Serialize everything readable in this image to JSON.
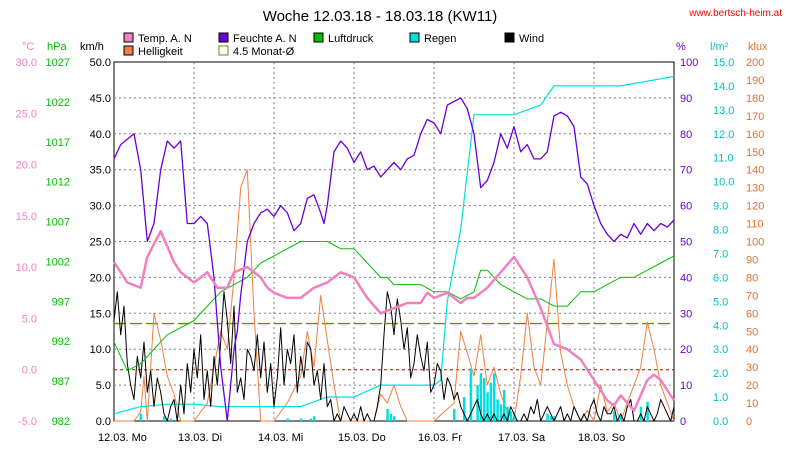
{
  "chart_data": {
    "type": "line",
    "title": "Woche 12.03.18 - 18.03.18 (KW11)",
    "source": "www.bertsch-heim.at",
    "x_labels": [
      "12.03.  Mo",
      "13.03.  Di",
      "14.03.  Mi",
      "15.03.  Do",
      "16.03.  Fr",
      "17.03.  Sa",
      "18.03.  So"
    ],
    "x_range_hours": [
      0,
      168
    ],
    "legend": [
      {
        "label": "Temp. A. N",
        "color": "#f080c0"
      },
      {
        "label": "Feuchte A. N",
        "color": "#6a00d8"
      },
      {
        "label": "Luftdruck",
        "color": "#00c000"
      },
      {
        "label": "Regen",
        "color": "#00e0e0"
      },
      {
        "label": "Wind",
        "color": "#000000"
      },
      {
        "label": "Helligkeit",
        "color": "#f08040"
      },
      {
        "label": "4.5 Monat-Ø",
        "color": "#808000"
      }
    ],
    "axes": {
      "temp": {
        "unit": "°C",
        "color": "#f080c0",
        "ticks": [
          "30.0",
          "25.0",
          "20.0",
          "15.0",
          "10.0",
          "5.0",
          "0.0",
          "-5.0"
        ],
        "min": -5,
        "max": 30
      },
      "press": {
        "unit": "hPa",
        "color": "#00c000",
        "ticks": [
          "1027",
          "1022",
          "1017",
          "1012",
          "1007",
          "1002",
          "997",
          "992",
          "987",
          "982"
        ],
        "min": 982,
        "max": 1032
      },
      "wind": {
        "unit": "km/h",
        "color": "#000000",
        "ticks": [
          "50.0",
          "45.0",
          "40.0",
          "35.0",
          "30.0",
          "25.0",
          "20.0",
          "15.0",
          "10.0",
          "5.0",
          "0.0"
        ],
        "min": 0,
        "max": 50
      },
      "hum": {
        "unit": "%",
        "color": "#6a00d8",
        "ticks": [
          "100",
          "90",
          "80",
          "70",
          "60",
          "50",
          "40",
          "30",
          "20",
          "10",
          "0"
        ],
        "min": 0,
        "max": 100
      },
      "rain": {
        "unit": "l/m²",
        "color": "#00c0c0",
        "ticks": [
          "15.0",
          "14.0",
          "13.0",
          "12.0",
          "11.0",
          "10.0",
          "9.0",
          "8.0",
          "7.0",
          "6.0",
          "5.0",
          "4.0",
          "3.0",
          "2.0",
          "1.0",
          "0.0"
        ],
        "min": 0,
        "max": 15
      },
      "lux": {
        "unit": "klux",
        "color": "#e07030",
        "ticks": [
          "200",
          "190",
          "180",
          "170",
          "160",
          "150",
          "140",
          "130",
          "120",
          "110",
          "100",
          "90",
          "80",
          "70",
          "60",
          "50",
          "40",
          "30",
          "20",
          "10",
          "0"
        ],
        "min": 0,
        "max": 200
      }
    },
    "reference_lines": {
      "temp_zero_c": 0,
      "avg_temp_c": 4.5
    },
    "series": {
      "temp": {
        "x": [
          0,
          4,
          8,
          10,
          14,
          18,
          20,
          24,
          28,
          31,
          34,
          36,
          40,
          44,
          46,
          48,
          52,
          56,
          60,
          64,
          68,
          72,
          76,
          80,
          84,
          88,
          92,
          94,
          96,
          100,
          104,
          106,
          108,
          112,
          116,
          120,
          124,
          128,
          132,
          136,
          140,
          144,
          148,
          150,
          152,
          156,
          160,
          162,
          164,
          168
        ],
        "y": [
          10.5,
          8.5,
          8.0,
          11.0,
          13.5,
          10.5,
          9.5,
          8.5,
          9.5,
          8.0,
          8.0,
          9.5,
          10.0,
          9.0,
          8.0,
          7.5,
          7.0,
          7.0,
          8.0,
          8.5,
          9.5,
          9.0,
          7.0,
          5.5,
          6.0,
          6.5,
          6.5,
          7.5,
          7.0,
          7.5,
          6.5,
          7.0,
          7.0,
          8.0,
          9.5,
          11.0,
          9.0,
          6.0,
          2.5,
          2.0,
          1.0,
          -1.0,
          -3.0,
          -3.5,
          -2.5,
          -4.0,
          -1.0,
          -0.5,
          -1.0,
          -3.0
        ]
      },
      "humidity": {
        "x": [
          0,
          2,
          6,
          8,
          10,
          12,
          14,
          16,
          18,
          20,
          22,
          24,
          26,
          28,
          30,
          32,
          34,
          36,
          37,
          38,
          40,
          42,
          44,
          46,
          48,
          50,
          52,
          54,
          56,
          58,
          60,
          62,
          63,
          64,
          66,
          68,
          70,
          72,
          74,
          76,
          78,
          80,
          82,
          84,
          86,
          88,
          90,
          92,
          94,
          96,
          98,
          100,
          102,
          104,
          106,
          108,
          110,
          112,
          114,
          116,
          118,
          120,
          122,
          124,
          126,
          128,
          130,
          132,
          134,
          136,
          138,
          140,
          142,
          144,
          146,
          148,
          150,
          152,
          154,
          156,
          158,
          160,
          162,
          164,
          166,
          168
        ],
        "y": [
          73,
          77,
          80,
          70,
          50,
          55,
          70,
          78,
          76,
          78,
          55,
          55,
          57,
          55,
          40,
          15,
          0,
          20,
          25,
          35,
          50,
          55,
          58,
          59,
          57,
          60,
          58,
          53,
          55,
          62,
          63,
          58,
          55,
          60,
          75,
          78,
          76,
          72,
          75,
          70,
          71,
          68,
          70,
          72,
          70,
          73,
          74,
          80,
          84,
          83,
          80,
          88,
          89,
          90,
          87,
          80,
          65,
          67,
          72,
          80,
          76,
          82,
          75,
          77,
          73,
          73,
          75,
          85,
          86,
          85,
          82,
          68,
          66,
          60,
          55,
          52,
          50,
          52,
          51,
          55,
          52,
          55,
          53,
          55,
          54,
          56
        ]
      },
      "pressure": {
        "x": [
          0,
          4,
          8,
          12,
          16,
          20,
          24,
          28,
          32,
          36,
          40,
          44,
          48,
          52,
          56,
          60,
          64,
          68,
          72,
          76,
          80,
          82,
          84,
          88,
          92,
          96,
          100,
          104,
          108,
          110,
          112,
          114,
          116,
          120,
          124,
          128,
          132,
          136,
          140,
          144,
          148,
          152,
          156,
          160,
          164,
          168
        ],
        "y": [
          993,
          989,
          990,
          992,
          994,
          995,
          996,
          998,
          1000,
          1001,
          1002,
          1004,
          1005,
          1006,
          1007,
          1007,
          1007,
          1006,
          1006,
          1004,
          1002,
          1002,
          1001,
          1001,
          1001,
          1000,
          1000,
          999,
          1000,
          1003,
          1003,
          1002,
          1001,
          1000,
          999,
          999,
          998,
          998,
          1000,
          1000,
          1001,
          1002,
          1002,
          1003,
          1004,
          1005
        ]
      },
      "wind": {
        "x": [
          0,
          1,
          2,
          3,
          4,
          5,
          6,
          7,
          8,
          9,
          10,
          11,
          12,
          13,
          14,
          15,
          16,
          17,
          18,
          19,
          20,
          21,
          22,
          23,
          24,
          25,
          26,
          27,
          28,
          29,
          30,
          31,
          32,
          33,
          34,
          35,
          36,
          37,
          38,
          39,
          40,
          41,
          42,
          43,
          44,
          45,
          46,
          47,
          48,
          49,
          50,
          51,
          52,
          53,
          54,
          55,
          56,
          57,
          58,
          59,
          60,
          61,
          62,
          63,
          64,
          65,
          66,
          67,
          68,
          69,
          70,
          71,
          72,
          73,
          74,
          75,
          76,
          77,
          78,
          79,
          80,
          81,
          82,
          83,
          84,
          85,
          86,
          87,
          88,
          89,
          90,
          91,
          92,
          93,
          94,
          95,
          96,
          97,
          98,
          99,
          100,
          101,
          102,
          103,
          104,
          105,
          106,
          107,
          108,
          109,
          110,
          111,
          112,
          113,
          114,
          115,
          116,
          117,
          118,
          119,
          120,
          121,
          122,
          123,
          124,
          125,
          126,
          127,
          128,
          129,
          130,
          131,
          132,
          133,
          134,
          135,
          136,
          137,
          138,
          139,
          140,
          141,
          142,
          143,
          144,
          145,
          146,
          147,
          148,
          149,
          150,
          151,
          152,
          153,
          154,
          155,
          156,
          157,
          158,
          159,
          160,
          161,
          162,
          163,
          164,
          165,
          166,
          167,
          168
        ],
        "y": [
          14,
          18,
          12,
          16,
          8,
          5,
          3,
          9,
          6,
          11,
          4,
          7,
          2,
          6,
          4,
          1,
          0,
          2,
          3,
          0,
          5,
          1,
          8,
          4,
          10,
          6,
          12,
          3,
          7,
          2,
          9,
          5,
          11,
          18,
          14,
          8,
          16,
          4,
          6,
          3,
          10,
          9,
          7,
          12,
          6,
          11,
          4,
          8,
          2,
          6,
          13,
          5,
          10,
          8,
          12,
          4,
          9,
          6,
          11,
          10,
          5,
          7,
          3,
          8,
          2,
          3,
          0,
          1,
          0,
          2,
          1,
          0,
          1,
          0,
          2,
          0,
          1,
          0,
          0,
          2,
          5,
          12,
          18,
          16,
          12,
          17,
          14,
          10,
          13,
          6,
          8,
          12,
          9,
          7,
          11,
          4,
          5,
          8,
          7,
          3,
          6,
          5,
          3,
          4,
          2,
          1,
          0,
          1,
          2,
          3,
          1,
          0,
          1,
          0,
          1,
          0,
          0,
          1,
          0,
          2,
          1,
          0,
          0,
          1,
          0,
          2,
          1,
          3,
          0,
          1,
          2,
          1,
          0,
          1,
          2,
          0,
          1,
          0,
          2,
          1,
          0,
          1,
          0,
          2,
          3,
          1,
          0,
          2,
          1,
          1,
          2,
          0,
          1,
          0,
          2,
          3,
          0,
          0,
          1,
          0,
          2,
          1,
          0,
          1,
          3,
          2,
          1,
          0,
          2
        ]
      },
      "rain_cumulative": {
        "x": [
          0,
          8,
          16,
          24,
          32,
          40,
          48,
          56,
          64,
          72,
          80,
          88,
          96,
          98,
          100,
          104,
          108,
          112,
          116,
          120,
          124,
          128,
          132,
          136,
          140,
          144,
          148,
          152,
          156,
          160,
          164,
          168
        ],
        "y": [
          0.3,
          0.6,
          0.7,
          0.7,
          0.6,
          0.6,
          0.6,
          0.6,
          1.0,
          1.0,
          1.5,
          1.5,
          1.5,
          1.7,
          5.0,
          8.0,
          12.8,
          12.8,
          12.8,
          12.8,
          13.0,
          13.2,
          14.0,
          14.0,
          14.0,
          14.0,
          14.0,
          14.0,
          14.1,
          14.2,
          14.3,
          14.4
        ]
      },
      "rain_bars": {
        "x": [
          8,
          15,
          17,
          52,
          56,
          59,
          60,
          82,
          83,
          84,
          102,
          105,
          107,
          109,
          110,
          111,
          112,
          113,
          114,
          115,
          116,
          117,
          118,
          119,
          120,
          130,
          131,
          132,
          150,
          152,
          158,
          160
        ],
        "y": [
          0.3,
          0.2,
          0.1,
          0.1,
          0.1,
          0.1,
          0.2,
          0.5,
          0.3,
          0.2,
          0.5,
          1.0,
          2.2,
          1.5,
          2.0,
          1.8,
          1.2,
          1.6,
          2.0,
          0.9,
          0.7,
          1.3,
          0.6,
          0.4,
          0.3,
          0.3,
          0.2,
          0.2,
          0.4,
          0.2,
          0.6,
          0.8
        ]
      },
      "brightness": {
        "x": [
          0,
          6,
          8,
          9,
          10,
          11,
          12,
          14,
          16,
          18,
          20,
          24,
          28,
          30,
          32,
          34,
          36,
          38,
          40,
          42,
          44,
          46,
          48,
          52,
          56,
          58,
          60,
          62,
          64,
          66,
          68,
          72,
          78,
          80,
          82,
          84,
          86,
          88,
          90,
          94,
          96,
          102,
          104,
          106,
          108,
          110,
          112,
          114,
          116,
          118,
          120,
          122,
          124,
          126,
          128,
          130,
          132,
          134,
          136,
          138,
          140,
          142,
          144,
          146,
          148,
          150,
          152,
          154,
          156,
          158,
          160,
          162,
          164,
          166,
          168
        ],
        "y": [
          0,
          0,
          5,
          25,
          0,
          30,
          60,
          45,
          25,
          15,
          0,
          0,
          10,
          30,
          50,
          40,
          80,
          130,
          140,
          60,
          0,
          0,
          0,
          10,
          25,
          50,
          30,
          70,
          45,
          20,
          0,
          0,
          0,
          15,
          10,
          20,
          8,
          0,
          0,
          0,
          0,
          10,
          50,
          38,
          25,
          48,
          20,
          30,
          15,
          5,
          0,
          25,
          60,
          30,
          20,
          55,
          90,
          38,
          20,
          8,
          0,
          6,
          0,
          20,
          5,
          10,
          0,
          10,
          20,
          30,
          55,
          40,
          20,
          10,
          0
        ]
      }
    }
  }
}
